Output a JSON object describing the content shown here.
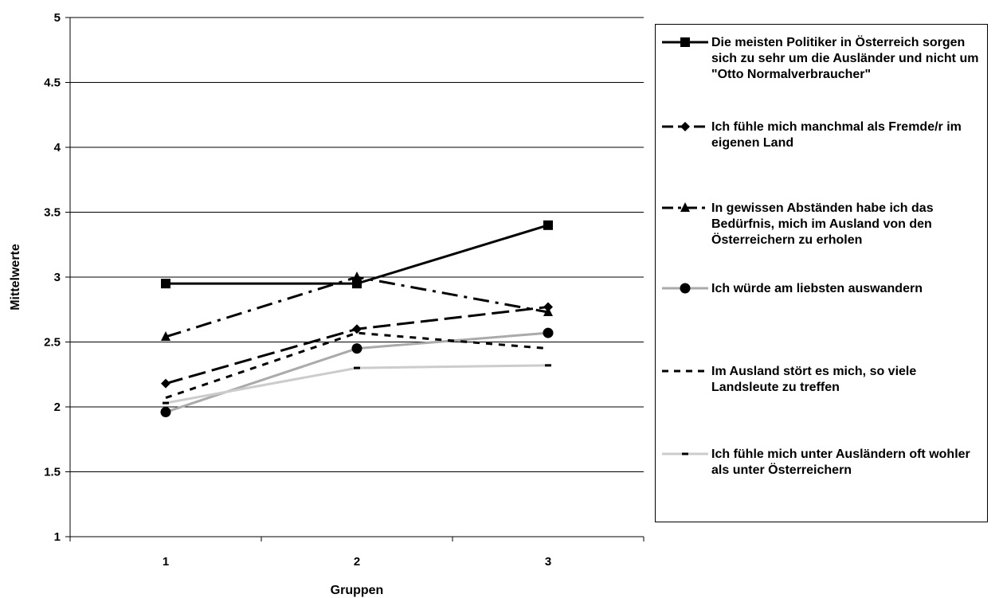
{
  "chart_data": {
    "type": "line",
    "xlabel": "Gruppen",
    "ylabel": "Mittelwerte",
    "categories": [
      "1",
      "2",
      "3"
    ],
    "ylim": [
      1,
      5
    ],
    "yticks": [
      "1",
      "1.5",
      "2",
      "2.5",
      "3",
      "3.5",
      "4",
      "4.5",
      "5"
    ],
    "grid": "horizontal",
    "legend_position": "right",
    "series": [
      {
        "name": "Die meisten Politiker in Österreich sorgen sich zu sehr um die Ausländer und nicht um \"Otto Normalverbraucher\"",
        "values": [
          2.95,
          2.95,
          3.4
        ],
        "color": "#000000",
        "dash": "solid",
        "marker": "square"
      },
      {
        "name": "Ich fühle mich manchmal als Fremde/r im eigenen Land",
        "values": [
          2.18,
          2.6,
          2.77
        ],
        "color": "#000000",
        "dash": "longdash",
        "marker": "diamond"
      },
      {
        "name": "In gewissen Abständen habe ich das Bedürfnis, mich im Ausland von den Österreichern zu erholen",
        "values": [
          2.54,
          3.0,
          2.73
        ],
        "color": "#000000",
        "dash": "dashdot",
        "marker": "triangle"
      },
      {
        "name": "Ich würde am liebsten auswandern",
        "values": [
          1.96,
          2.45,
          2.57
        ],
        "color": "#aaaaaa",
        "dash": "solid",
        "marker": "circle"
      },
      {
        "name": "Im Ausland stört es mich, so viele Landsleute zu treffen",
        "values": [
          2.07,
          2.57,
          2.45
        ],
        "color": "#000000",
        "dash": "shortdash",
        "marker": "none"
      },
      {
        "name": "Ich fühle mich unter Ausländern oft wohler als unter Österreichern",
        "values": [
          2.03,
          2.3,
          2.32
        ],
        "color": "#cccccc",
        "dash": "solid",
        "marker": "dash"
      }
    ]
  }
}
